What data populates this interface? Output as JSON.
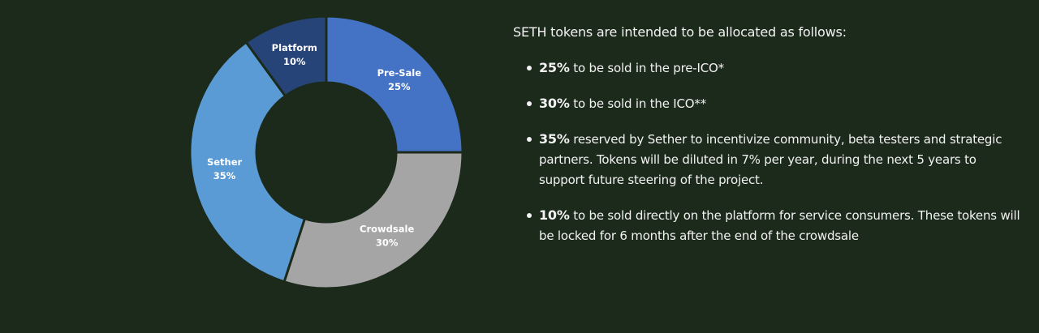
{
  "chart_data": {
    "type": "pie",
    "variant": "donut",
    "slices": [
      {
        "label": "Pre-Sale",
        "value": 25,
        "value_label": "25%",
        "color": "#4472c4"
      },
      {
        "label": "Crowdsale",
        "value": 30,
        "value_label": "30%",
        "color": "#a5a5a5"
      },
      {
        "label": "Sether",
        "value": 35,
        "value_label": "35%",
        "color": "#5b9bd5"
      },
      {
        "label": "Platform",
        "value": 10,
        "value_label": "10%",
        "color": "#264478"
      }
    ],
    "start_angle_deg": 0,
    "direction": "clockwise",
    "legend": "none",
    "background": "#1c2a1b"
  },
  "text": {
    "intro": "SETH tokens are intended to be allocated as follows:",
    "items": [
      {
        "percent": "25%",
        "text": " to be sold in the pre-ICO*"
      },
      {
        "percent": "30%",
        "text": " to be sold in the ICO**"
      },
      {
        "percent": "35%",
        "text": " reserved by Sether to incentivize community, beta testers and strategic partners. Tokens will be diluted in 7% per year, during the next 5 years to support future steering of the project."
      },
      {
        "percent": "10%",
        "text": " to be sold directly on the platform for service consumers. These tokens will be locked for 6 months after the end of the crowdsale"
      }
    ]
  }
}
